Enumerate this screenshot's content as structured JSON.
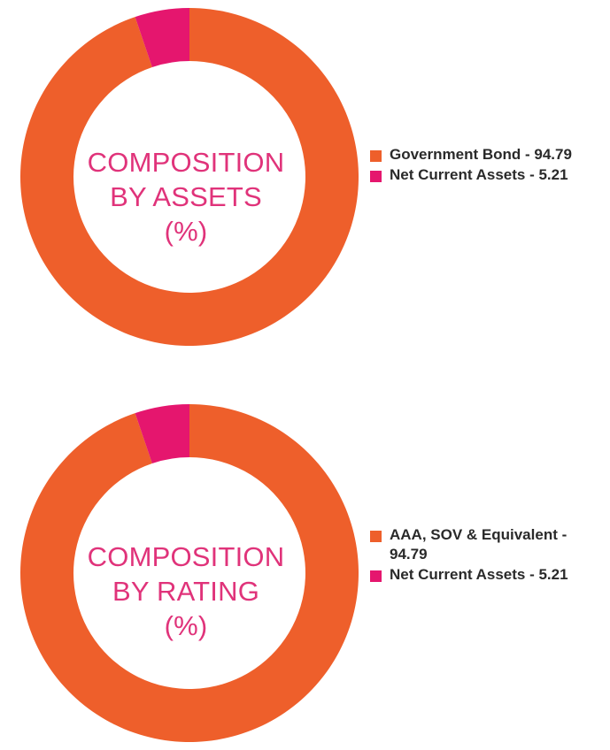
{
  "colors": {
    "orange": "#ee5f2b",
    "magenta": "#e5166e",
    "center_text": "#e0337a"
  },
  "chart_data": [
    {
      "type": "pie",
      "center_text": [
        "COMPOSITION",
        "BY ASSETS",
        "(%)"
      ],
      "slices": [
        {
          "label": "Government Bond - 94.79",
          "value": 94.79,
          "color": "#ee5f2b"
        },
        {
          "label": "Net Current Assets - 5.21",
          "value": 5.21,
          "color": "#e5166e"
        }
      ],
      "legend_position": "right"
    },
    {
      "type": "pie",
      "center_text": [
        "COMPOSITION",
        "BY RATING",
        "(%)"
      ],
      "slices": [
        {
          "label": "AAA, SOV & Equivalent - 94.79",
          "value": 94.79,
          "color": "#ee5f2b"
        },
        {
          "label": "Net Current Assets - 5.21",
          "value": 5.21,
          "color": "#e5166e"
        }
      ],
      "legend_position": "right"
    }
  ]
}
